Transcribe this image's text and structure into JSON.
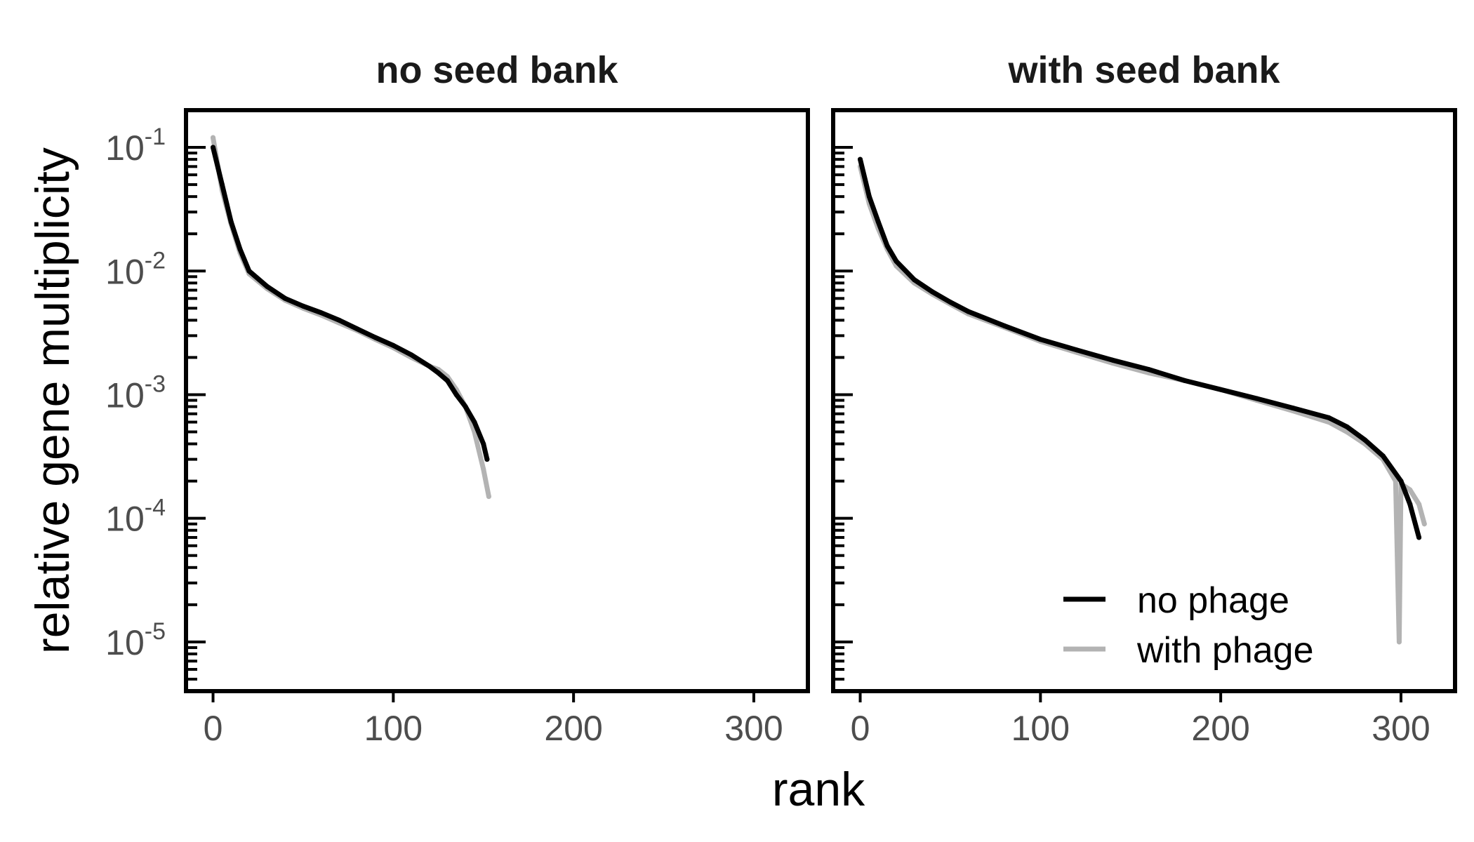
{
  "chart_data": {
    "type": "line",
    "xlabel": "rank",
    "ylabel": "relative gene multiplicity",
    "y_scale": "log10",
    "ylim": [
      4e-06,
      0.2
    ],
    "xlim": [
      -15,
      330
    ],
    "x_ticks": [
      "0",
      "100",
      "200",
      "300"
    ],
    "y_ticks": [
      {
        "value": 0.1,
        "base": "10",
        "exp": "-1"
      },
      {
        "value": 0.01,
        "base": "10",
        "exp": "-2"
      },
      {
        "value": 0.001,
        "base": "10",
        "exp": "-3"
      },
      {
        "value": 0.0001,
        "base": "10",
        "exp": "-4"
      },
      {
        "value": 1e-05,
        "base": "10",
        "exp": "-5"
      }
    ],
    "legend": {
      "placement": "bottom-right",
      "entries": [
        "no phage",
        "with phage"
      ]
    },
    "series_colors": {
      "no phage": "#000000",
      "with phage": "#b3b3b3"
    },
    "panels": [
      {
        "title": "no seed bank",
        "series": [
          {
            "name": "no phage",
            "x": [
              0,
              5,
              10,
              15,
              20,
              30,
              40,
              50,
              60,
              70,
              80,
              90,
              100,
              110,
              120,
              125,
              130,
              135,
              140,
              145,
              150,
              152
            ],
            "y": [
              0.1,
              0.05,
              0.025,
              0.015,
              0.01,
              0.0075,
              0.006,
              0.0052,
              0.0046,
              0.004,
              0.0034,
              0.0029,
              0.0025,
              0.0021,
              0.0017,
              0.0015,
              0.0013,
              0.001,
              0.0008,
              0.0006,
              0.0004,
              0.0003
            ]
          },
          {
            "name": "with phage",
            "x": [
              0,
              5,
              10,
              15,
              20,
              30,
              40,
              50,
              60,
              70,
              80,
              90,
              100,
              110,
              120,
              125,
              130,
              135,
              140,
              145,
              150,
              153
            ],
            "y": [
              0.12,
              0.045,
              0.024,
              0.014,
              0.0095,
              0.0072,
              0.0058,
              0.005,
              0.0044,
              0.0038,
              0.0033,
              0.0028,
              0.0024,
              0.002,
              0.0017,
              0.0016,
              0.0014,
              0.0011,
              0.0008,
              0.0005,
              0.00025,
              0.00015
            ]
          }
        ]
      },
      {
        "title": "with seed bank",
        "series": [
          {
            "name": "no phage",
            "x": [
              0,
              5,
              10,
              15,
              20,
              30,
              40,
              50,
              60,
              80,
              100,
              120,
              140,
              160,
              180,
              200,
              220,
              240,
              260,
              270,
              280,
              290,
              300,
              305,
              310
            ],
            "y": [
              0.08,
              0.04,
              0.025,
              0.016,
              0.012,
              0.0085,
              0.0068,
              0.0056,
              0.0047,
              0.0036,
              0.0028,
              0.0023,
              0.0019,
              0.0016,
              0.0013,
              0.0011,
              0.00093,
              0.00078,
              0.00065,
              0.00055,
              0.00043,
              0.00032,
              0.0002,
              0.00013,
              7e-05
            ]
          },
          {
            "name": "with phage",
            "x": [
              0,
              5,
              10,
              15,
              20,
              30,
              40,
              50,
              60,
              80,
              100,
              120,
              140,
              160,
              180,
              200,
              220,
              240,
              260,
              270,
              280,
              290,
              297,
              299,
              300,
              305,
              310,
              313
            ],
            "y": [
              0.07,
              0.035,
              0.022,
              0.015,
              0.011,
              0.008,
              0.0065,
              0.0054,
              0.0045,
              0.0035,
              0.0027,
              0.0022,
              0.0018,
              0.0015,
              0.0013,
              0.0011,
              0.0009,
              0.00074,
              0.0006,
              0.0005,
              0.0004,
              0.0003,
              0.0002,
              1e-05,
              0.00019,
              0.00017,
              0.00013,
              9e-05
            ]
          }
        ]
      }
    ]
  }
}
